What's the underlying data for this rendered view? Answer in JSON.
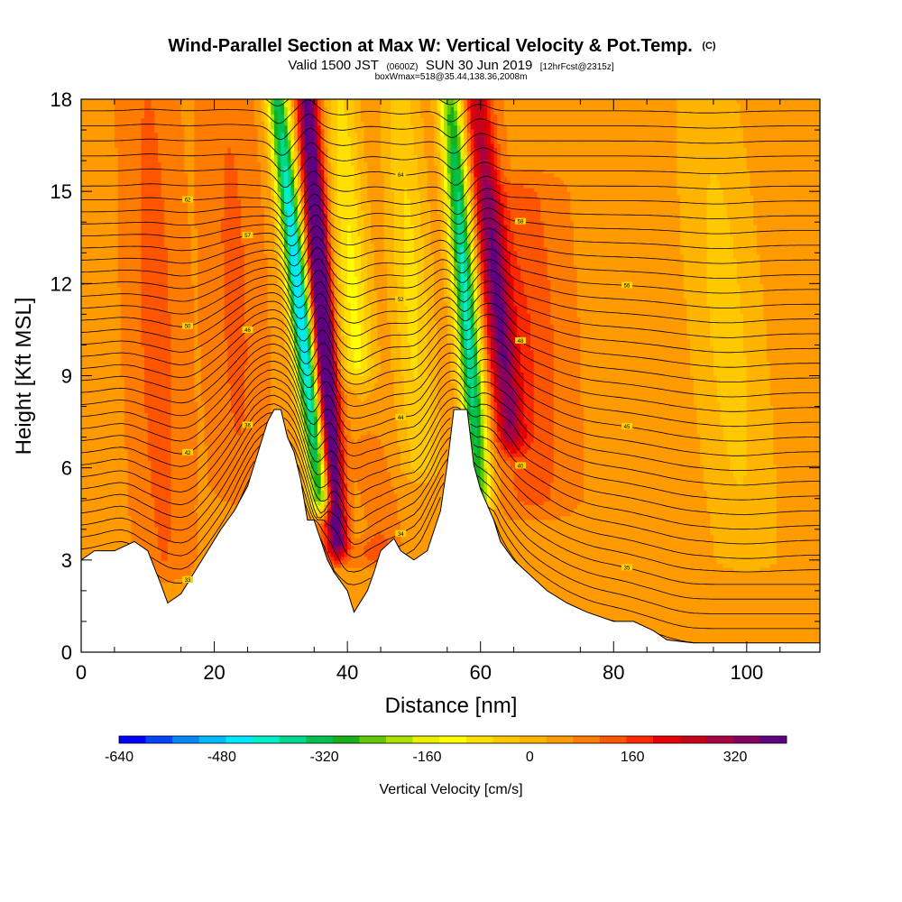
{
  "header": {
    "title": "Wind-Parallel Section at Max W: Vertical Velocity & Pot.Temp.",
    "title_mark": "(C)",
    "valid_prefix": "Valid 1500 JST",
    "valid_utc": "(0600Z)",
    "valid_date": "SUN 30 Jun 2019",
    "forecast": "[12hrFcst@2315z]",
    "boxline": "boxWmax=518@35.44,138.36,2008m"
  },
  "chart_data": {
    "type": "heatmap",
    "title": "Wind-Parallel Section at Max W: Vertical Velocity & Pot.Temp.",
    "xlabel": "Distance [nm]",
    "ylabel": "Height [Kft MSL]",
    "xlim": [
      0,
      111
    ],
    "ylim": [
      0,
      18
    ],
    "x_ticks": [
      0,
      20,
      40,
      60,
      80,
      100
    ],
    "x_tick_labels": [
      "0",
      "20",
      "40",
      "60",
      "80",
      "100"
    ],
    "y_ticks": [
      0,
      3,
      6,
      9,
      12,
      15,
      18
    ],
    "y_tick_labels": [
      "0",
      "3",
      "6",
      "9",
      "12",
      "15",
      "18"
    ],
    "background_w": 60,
    "terrain": [
      [
        0,
        3
      ],
      [
        2,
        3.3
      ],
      [
        5,
        3.3
      ],
      [
        8,
        3.6
      ],
      [
        10,
        3.3
      ],
      [
        12,
        2.2
      ],
      [
        13,
        1.6
      ],
      [
        15,
        1.9
      ],
      [
        17,
        2.6
      ],
      [
        19,
        3.3
      ],
      [
        21,
        4.0
      ],
      [
        23,
        4.6
      ],
      [
        25,
        5.4
      ],
      [
        27,
        6.8
      ],
      [
        28,
        7.5
      ],
      [
        29,
        7.9
      ],
      [
        30,
        7.9
      ],
      [
        31,
        7.0
      ],
      [
        32,
        6.5
      ],
      [
        33,
        5.6
      ],
      [
        34,
        4.3
      ],
      [
        35,
        4.3
      ],
      [
        37,
        3.0
      ],
      [
        38,
        2.6
      ],
      [
        40,
        2.0
      ],
      [
        41,
        1.3
      ],
      [
        43,
        2.0
      ],
      [
        44,
        2.6
      ],
      [
        45,
        3.3
      ],
      [
        47,
        3.7
      ],
      [
        48,
        3.3
      ],
      [
        50,
        3.0
      ],
      [
        52,
        3.3
      ],
      [
        54,
        4.6
      ],
      [
        55,
        6.1
      ],
      [
        56,
        7.9
      ],
      [
        58,
        7.9
      ],
      [
        59,
        6.1
      ],
      [
        60,
        5.3
      ],
      [
        62,
        4.3
      ],
      [
        63,
        3.6
      ],
      [
        65,
        3.0
      ],
      [
        67,
        2.6
      ],
      [
        70,
        2.0
      ],
      [
        73,
        1.6
      ],
      [
        76,
        1.3
      ],
      [
        80,
        1.0
      ],
      [
        83,
        1.0
      ],
      [
        86,
        0.7
      ],
      [
        88,
        0.4
      ],
      [
        92,
        0.3
      ],
      [
        100,
        0.3
      ],
      [
        111,
        0.3
      ]
    ],
    "w_features": [
      {
        "x0": 29.5,
        "x1": 36.0,
        "h0": 18,
        "h1": 5.0,
        "width": 1.7,
        "peak": -540
      },
      {
        "x0": 34.0,
        "x1": 38.5,
        "h0": 18,
        "h1": 3.5,
        "width": 1.6,
        "peak": 480
      },
      {
        "x0": 39.0,
        "x1": 43.0,
        "h0": 18,
        "h1": 4.0,
        "width": 2.6,
        "peak": -170
      },
      {
        "x0": 41.5,
        "x1": 44.0,
        "h0": 8.5,
        "h1": 3.5,
        "width": 2.6,
        "peak": 170
      },
      {
        "x0": 55.5,
        "x1": 60.0,
        "h0": 18,
        "h1": 5.0,
        "width": 1.8,
        "peak": -470
      },
      {
        "x0": 59.5,
        "x1": 64.5,
        "h0": 18,
        "h1": 7.0,
        "width": 2.1,
        "peak": 280
      },
      {
        "x0": 48.0,
        "x1": 51.0,
        "h0": 18,
        "h1": 6.0,
        "width": 3.0,
        "peak": -130
      },
      {
        "x0": 10.0,
        "x1": 12.5,
        "h0": 18,
        "h1": 3.0,
        "width": 3.5,
        "peak": 70
      },
      {
        "x0": 22.0,
        "x1": 24.0,
        "h0": 18,
        "h1": 5.5,
        "width": 3.5,
        "peak": 60
      },
      {
        "x0": 94.0,
        "x1": 100.0,
        "h0": 18,
        "h1": 3.0,
        "width": 6.0,
        "peak": -90
      },
      {
        "x0": 66.0,
        "x1": 68.0,
        "h0": 15,
        "h1": 5.0,
        "width": 5.0,
        "peak": 90
      }
    ],
    "theta_contours": {
      "min": 29,
      "max": 67,
      "step": 1,
      "labels": [
        "33",
        "34",
        "35",
        "36",
        "40",
        "42",
        "44",
        "45",
        "46",
        "48",
        "50",
        "52",
        "56",
        "57",
        "58",
        "62",
        "64"
      ]
    },
    "colorbar": {
      "label": "Vertical Velocity [cm/s]",
      "range": [
        -640,
        400
      ],
      "tick_values": [
        -640,
        -480,
        -320,
        -160,
        0,
        160,
        320
      ],
      "tick_labels": [
        "-640",
        "-480",
        "-320",
        "-160",
        "0",
        "160",
        "320"
      ],
      "colors": [
        "#0000ff",
        "#0044ff",
        "#0088ff",
        "#00bbff",
        "#00e8ff",
        "#00eec8",
        "#00d88c",
        "#00c050",
        "#18b018",
        "#60c800",
        "#a8e000",
        "#e8f000",
        "#ffff00",
        "#ffe000",
        "#ffc800",
        "#ffb400",
        "#ff9a00",
        "#ff7c00",
        "#ff5400",
        "#ff2800",
        "#e80000",
        "#c80018",
        "#a80040",
        "#880060",
        "#600080"
      ]
    }
  }
}
